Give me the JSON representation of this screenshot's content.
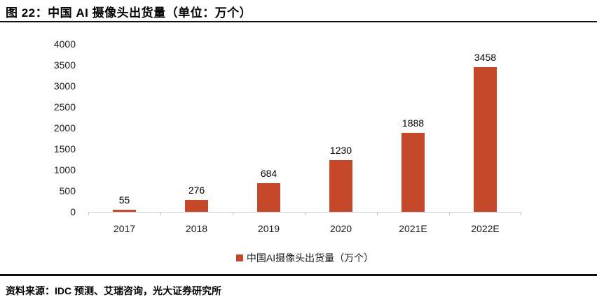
{
  "header": {
    "title": "图 22：中国 AI 摄像头出货量（单位：万个）"
  },
  "chart_data": {
    "type": "bar",
    "title": "中国AI摄像头出货量（万个）",
    "categories": [
      "2017",
      "2018",
      "2019",
      "2020",
      "2021E",
      "2022E"
    ],
    "values": [
      55,
      276,
      684,
      1230,
      1888,
      3458
    ],
    "legend": "中国AI摄像头出货量（万个）",
    "legend_position": "bottom",
    "xlabel": "",
    "ylabel": "",
    "ylim": [
      0,
      4000
    ],
    "yticks": [
      0,
      500,
      1000,
      1500,
      2000,
      2500,
      3000,
      3500,
      4000
    ],
    "grid": false,
    "bar_color": "#C6482A",
    "axis_color": "#C9C9C9"
  },
  "footer": {
    "source": "资料来源：IDC 预测、艾瑞咨询，光大证券研究所"
  }
}
